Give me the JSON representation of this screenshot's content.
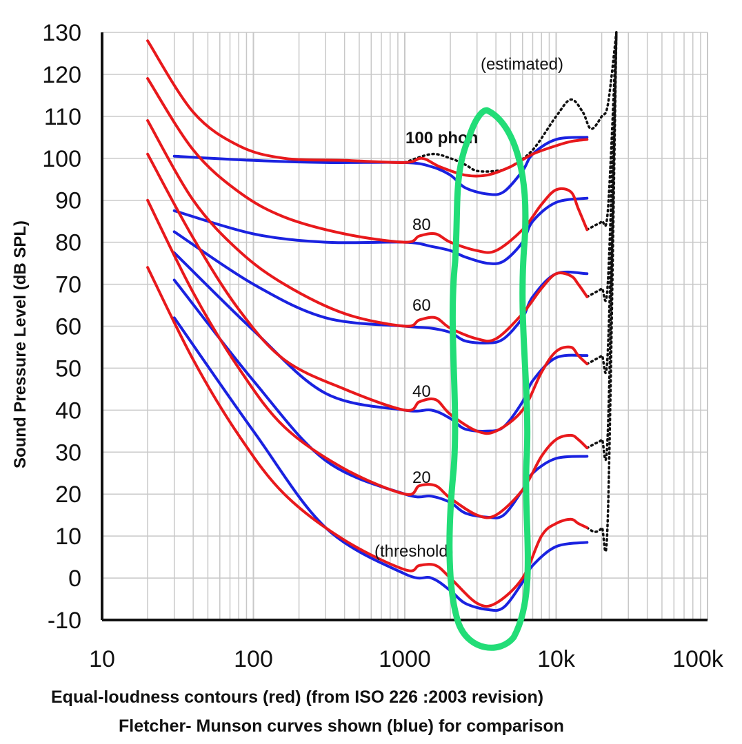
{
  "chart_data": {
    "type": "line",
    "x_scale": "log",
    "xlim": [
      10,
      100000
    ],
    "ylim": [
      -10,
      130
    ],
    "grid": true,
    "ylabel": "Sound Pressure Level (dB SPL)",
    "x_ticks": [
      {
        "value": 10,
        "label": "10"
      },
      {
        "value": 100,
        "label": "100"
      },
      {
        "value": 1000,
        "label": "1000"
      },
      {
        "value": 10000,
        "label": "10k"
      },
      {
        "value": 100000,
        "label": "100k"
      }
    ],
    "y_ticks": [
      130,
      120,
      110,
      100,
      90,
      80,
      70,
      60,
      50,
      40,
      30,
      20,
      10,
      0,
      -10
    ],
    "annotations": {
      "estimated": "(estimated)",
      "phon100": "100 phon",
      "phon80": "80",
      "phon60": "60",
      "phon40": "40",
      "phon20": "20",
      "threshold": "(threshold)"
    },
    "caption_line1": "Equal-loudness contours (red) (from ISO 226 :2003 revision)",
    "caption_line2": "Fletcher- Munson curves shown (blue) for comparison",
    "colors": {
      "iso": "#e8191c",
      "fletcher": "#1a22e0",
      "estimated": "#111111",
      "grid": "#c8c8c8",
      "highlight": "#22dd77"
    },
    "series": [
      {
        "group": "iso",
        "values": [
          [
            20,
            128
          ],
          [
            40,
            111
          ],
          [
            80,
            103
          ],
          [
            160,
            100
          ],
          [
            400,
            99.5
          ],
          [
            1000,
            99
          ],
          [
            1300,
            100
          ],
          [
            1700,
            98
          ],
          [
            2500,
            96
          ],
          [
            3500,
            96
          ],
          [
            5000,
            98
          ],
          [
            7000,
            101
          ],
          [
            10000,
            103
          ],
          [
            12500,
            104
          ],
          [
            16000,
            104.5
          ]
        ]
      },
      {
        "group": "iso",
        "values": [
          [
            20,
            119
          ],
          [
            40,
            102
          ],
          [
            80,
            92
          ],
          [
            160,
            86
          ],
          [
            400,
            82
          ],
          [
            1000,
            80
          ],
          [
            1250,
            81.5
          ],
          [
            1600,
            82
          ],
          [
            2000,
            80
          ],
          [
            3000,
            78
          ],
          [
            4000,
            78
          ],
          [
            6000,
            83
          ],
          [
            8000,
            89
          ],
          [
            10000,
            92.5
          ],
          [
            12500,
            92
          ],
          [
            14000,
            88
          ],
          [
            16000,
            83
          ]
        ]
      },
      {
        "group": "iso",
        "values": [
          [
            20,
            109
          ],
          [
            40,
            90
          ],
          [
            80,
            78
          ],
          [
            160,
            70
          ],
          [
            400,
            63
          ],
          [
            1000,
            60
          ],
          [
            1250,
            61.5
          ],
          [
            1600,
            62
          ],
          [
            2000,
            59.5
          ],
          [
            3000,
            57
          ],
          [
            4000,
            57
          ],
          [
            6000,
            63
          ],
          [
            8000,
            69
          ],
          [
            10000,
            72.5
          ],
          [
            12500,
            72
          ],
          [
            14000,
            70
          ],
          [
            16000,
            67
          ]
        ]
      },
      {
        "group": "iso",
        "values": [
          [
            20,
            101
          ],
          [
            40,
            81
          ],
          [
            80,
            64
          ],
          [
            160,
            52
          ],
          [
            400,
            45
          ],
          [
            1000,
            40
          ],
          [
            1250,
            42
          ],
          [
            1600,
            42.5
          ],
          [
            2000,
            39
          ],
          [
            3000,
            35
          ],
          [
            4000,
            35
          ],
          [
            6000,
            40
          ],
          [
            8000,
            49
          ],
          [
            10000,
            54
          ],
          [
            12500,
            55
          ],
          [
            14000,
            53
          ],
          [
            16000,
            51
          ]
        ]
      },
      {
        "group": "iso",
        "values": [
          [
            20,
            90
          ],
          [
            40,
            68
          ],
          [
            80,
            50
          ],
          [
            160,
            36
          ],
          [
            400,
            26
          ],
          [
            1000,
            20
          ],
          [
            1250,
            22
          ],
          [
            1600,
            22
          ],
          [
            2000,
            19
          ],
          [
            3000,
            15
          ],
          [
            4000,
            15
          ],
          [
            6000,
            21
          ],
          [
            8000,
            29
          ],
          [
            10000,
            33
          ],
          [
            12500,
            34
          ],
          [
            14000,
            33
          ],
          [
            16000,
            31
          ]
        ]
      },
      {
        "group": "iso",
        "values": [
          [
            20,
            74
          ],
          [
            40,
            52
          ],
          [
            80,
            34
          ],
          [
            160,
            20
          ],
          [
            400,
            9
          ],
          [
            1000,
            2
          ],
          [
            1250,
            3
          ],
          [
            1600,
            3
          ],
          [
            2000,
            0
          ],
          [
            3000,
            -6
          ],
          [
            4000,
            -6
          ],
          [
            6000,
            0
          ],
          [
            8000,
            10
          ],
          [
            10000,
            13
          ],
          [
            12500,
            14
          ],
          [
            14000,
            13
          ],
          [
            16000,
            12
          ]
        ]
      },
      {
        "group": "fletcher",
        "values": [
          [
            30,
            100.5
          ],
          [
            100,
            99.5
          ],
          [
            300,
            99
          ],
          [
            1000,
            99
          ],
          [
            1500,
            98
          ],
          [
            2000,
            96
          ],
          [
            2500,
            93
          ],
          [
            3500,
            91.5
          ],
          [
            4500,
            92
          ],
          [
            6000,
            97
          ],
          [
            7000,
            101
          ],
          [
            10000,
            104.5
          ],
          [
            16000,
            105
          ]
        ]
      },
      {
        "group": "fletcher",
        "values": [
          [
            30,
            87.5
          ],
          [
            100,
            82
          ],
          [
            300,
            80
          ],
          [
            1000,
            80
          ],
          [
            1500,
            79
          ],
          [
            2000,
            78
          ],
          [
            2500,
            76.5
          ],
          [
            3500,
            75
          ],
          [
            4500,
            75.5
          ],
          [
            6000,
            80
          ],
          [
            7000,
            85
          ],
          [
            10000,
            89.5
          ],
          [
            16000,
            90.5
          ]
        ]
      },
      {
        "group": "fletcher",
        "values": [
          [
            30,
            82.5
          ],
          [
            100,
            70
          ],
          [
            300,
            62
          ],
          [
            1000,
            60
          ],
          [
            1500,
            59.5
          ],
          [
            2000,
            58.5
          ],
          [
            2500,
            56.5
          ],
          [
            3500,
            56
          ],
          [
            4500,
            57
          ],
          [
            6000,
            62
          ],
          [
            7000,
            67
          ],
          [
            10000,
            72.5
          ],
          [
            16000,
            72.5
          ]
        ]
      },
      {
        "group": "fletcher",
        "values": [
          [
            30,
            77.5
          ],
          [
            100,
            59
          ],
          [
            300,
            44
          ],
          [
            1000,
            40
          ],
          [
            1500,
            40
          ],
          [
            2000,
            38
          ],
          [
            2500,
            35.5
          ],
          [
            3500,
            35
          ],
          [
            4500,
            36
          ],
          [
            6000,
            42
          ],
          [
            7000,
            47
          ],
          [
            10000,
            52.5
          ],
          [
            16000,
            53
          ]
        ]
      },
      {
        "group": "fletcher",
        "values": [
          [
            30,
            71
          ],
          [
            100,
            47
          ],
          [
            300,
            28
          ],
          [
            1000,
            20
          ],
          [
            1500,
            19.5
          ],
          [
            2000,
            18
          ],
          [
            2500,
            15.5
          ],
          [
            3500,
            14.5
          ],
          [
            4500,
            15
          ],
          [
            6000,
            21
          ],
          [
            7000,
            25
          ],
          [
            10000,
            28.5
          ],
          [
            16000,
            29
          ]
        ]
      },
      {
        "group": "fletcher",
        "values": [
          [
            30,
            62
          ],
          [
            100,
            35
          ],
          [
            300,
            12
          ],
          [
            1000,
            1
          ],
          [
            1500,
            0
          ],
          [
            2000,
            -3
          ],
          [
            2500,
            -6
          ],
          [
            3500,
            -7.5
          ],
          [
            4500,
            -7
          ],
          [
            6000,
            -1
          ],
          [
            7000,
            3
          ],
          [
            10000,
            7.5
          ],
          [
            16000,
            8.5
          ]
        ]
      },
      {
        "group": "estimated",
        "values": [
          [
            1000,
            99
          ],
          [
            1500,
            101
          ],
          [
            2000,
            100
          ],
          [
            2500,
            98.5
          ],
          [
            3000,
            97
          ],
          [
            4000,
            97
          ],
          [
            5000,
            98
          ],
          [
            7000,
            102
          ],
          [
            10000,
            110
          ],
          [
            12500,
            114
          ],
          [
            15000,
            111
          ],
          [
            17000,
            107
          ],
          [
            20000,
            110
          ],
          [
            22000,
            113
          ],
          [
            25000,
            130
          ]
        ]
      },
      {
        "group": "estimated",
        "values": [
          [
            16000,
            83
          ],
          [
            18000,
            84
          ],
          [
            20000,
            85
          ],
          [
            22000,
            88
          ],
          [
            25000,
            130
          ]
        ]
      },
      {
        "group": "estimated",
        "values": [
          [
            16000,
            67
          ],
          [
            18000,
            68
          ],
          [
            20000,
            69
          ],
          [
            22000,
            71
          ],
          [
            25000,
            130
          ]
        ]
      },
      {
        "group": "estimated",
        "values": [
          [
            16000,
            51
          ],
          [
            18000,
            52
          ],
          [
            20000,
            53
          ],
          [
            22000,
            55
          ],
          [
            25000,
            130
          ]
        ]
      },
      {
        "group": "estimated",
        "values": [
          [
            16000,
            31
          ],
          [
            18000,
            32
          ],
          [
            20000,
            33
          ],
          [
            22000,
            36
          ],
          [
            25000,
            130
          ]
        ]
      },
      {
        "group": "estimated",
        "values": [
          [
            16000,
            12
          ],
          [
            18000,
            11
          ],
          [
            20000,
            12
          ],
          [
            22000,
            16
          ],
          [
            25000,
            130
          ]
        ]
      }
    ]
  }
}
